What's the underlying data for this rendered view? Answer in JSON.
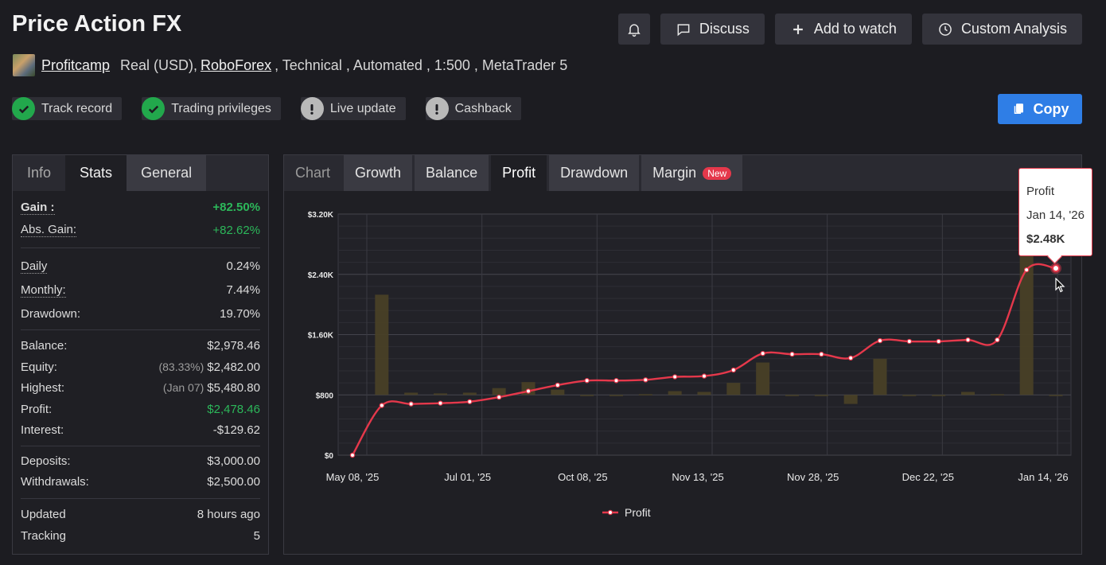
{
  "header": {
    "title": "Price Action FX",
    "actions": {
      "discuss": "Discuss",
      "watch": "Add to watch",
      "analysis": "Custom Analysis"
    }
  },
  "meta": {
    "owner": "Profitcamp",
    "account": "Real (USD),",
    "broker": "RoboForex",
    "details": ", Technical , Automated , 1:500 , MetaTrader 5"
  },
  "badges": {
    "track": "Track record",
    "privileges": "Trading privileges",
    "live": "Live update",
    "cashback": "Cashback"
  },
  "copy_label": "Copy",
  "left_tabs": {
    "info": "Info",
    "stats": "Stats",
    "general": "General"
  },
  "stats": {
    "gain": {
      "label": "Gain :",
      "value": "+82.50%"
    },
    "abs_gain": {
      "label": "Abs. Gain:",
      "value": "+82.62%"
    },
    "daily": {
      "label": "Daily",
      "value": "0.24%"
    },
    "monthly": {
      "label": "Monthly:",
      "value": "7.44%"
    },
    "drawdown": {
      "label": "Drawdown:",
      "value": "19.70%"
    },
    "balance": {
      "label": "Balance:",
      "value": "$2,978.46"
    },
    "equity": {
      "label": "Equity:",
      "note": "(83.33%)",
      "value": "$2,482.00"
    },
    "highest": {
      "label": "Highest:",
      "note": "(Jan 07)",
      "value": "$5,480.80"
    },
    "profit": {
      "label": "Profit:",
      "value": "$2,478.46"
    },
    "interest": {
      "label": "Interest:",
      "value": "-$129.62"
    },
    "deposits": {
      "label": "Deposits:",
      "value": "$3,000.00"
    },
    "withdrawals": {
      "label": "Withdrawals:",
      "value": "$2,500.00"
    },
    "updated": {
      "label": "Updated",
      "value": "8 hours ago"
    },
    "tracking": {
      "label": "Tracking",
      "value": "5"
    }
  },
  "chart_tabs": {
    "chart": "Chart",
    "growth": "Growth",
    "balance": "Balance",
    "profit": "Profit",
    "drawdown": "Drawdown",
    "margin": "Margin",
    "new": "New"
  },
  "tooltip": {
    "series": "Profit",
    "date": "Jan 14, '26",
    "value": "$2.48K"
  },
  "colors": {
    "line": "#e5384b",
    "bars": "#4a4126",
    "accent": "#2f7ee6",
    "positive": "#2cb75a"
  },
  "chart_data": {
    "type": "line",
    "y_ticks": [
      "$0",
      "$800",
      "$1.60K",
      "$2.40K",
      "$3.20K"
    ],
    "ylim": [
      0,
      3200
    ],
    "x_ticks": [
      "May 08, '25",
      "Jul 01, '25",
      "Oct 08, '25",
      "Nov 13, '25",
      "Nov 28, '25",
      "Dec 22, '25",
      "Jan 14, '26"
    ],
    "legend": "top-bottom",
    "series": [
      {
        "name": "Profit",
        "values": [
          0,
          660,
          680,
          690,
          710,
          770,
          850,
          930,
          990,
          990,
          1000,
          1040,
          1050,
          1130,
          1350,
          1340,
          1340,
          1290,
          1520,
          1510,
          1510,
          1530,
          1530,
          2460,
          2480
        ]
      }
    ],
    "bars": [
      0,
      2130,
      830,
      820,
      830,
      890,
      970,
      870,
      800,
      800,
      810,
      850,
      840,
      960,
      1230,
      800,
      800,
      680,
      1280,
      800,
      800,
      840,
      810,
      2760,
      800
    ]
  },
  "legend_label": "Profit"
}
